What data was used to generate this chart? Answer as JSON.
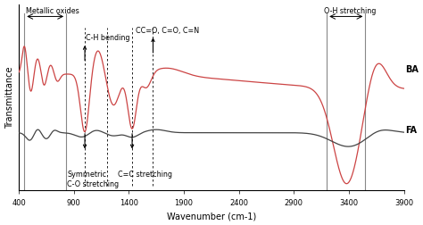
{
  "xmin": 400,
  "xmax": 3900,
  "ylabel": "Transmittance",
  "xlabel": "Wavenumber (cm-1)",
  "ba_color": "#cc4444",
  "fa_color": "#444444",
  "bg_color": "#ffffff",
  "vertical_lines_metallic": [
    450,
    830
  ],
  "vertical_lines_oh": [
    3200,
    3550
  ],
  "dashed_lines": [
    1000,
    1200,
    1430,
    1620
  ],
  "xticks": [
    400,
    900,
    1400,
    1900,
    2400,
    2900,
    3400,
    3900
  ],
  "xtick_labels": [
    "400",
    "900",
    "1400",
    "1900",
    "2400",
    "2900",
    "3400",
    "3900"
  ]
}
